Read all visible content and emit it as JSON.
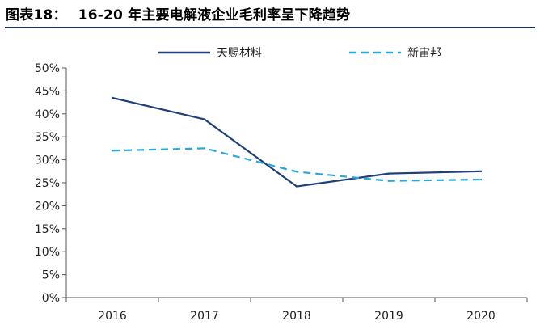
{
  "header": {
    "figure_label": "图表18：",
    "title": "16-20 年主要电解液企业毛利率呈下降趋势"
  },
  "chart_data": {
    "type": "line",
    "categories": [
      "2016",
      "2017",
      "2018",
      "2019",
      "2020"
    ],
    "yticks": [
      "0%",
      "5%",
      "10%",
      "15%",
      "20%",
      "25%",
      "30%",
      "35%",
      "40%",
      "45%",
      "50%"
    ],
    "ylim": [
      0,
      50
    ],
    "series": [
      {
        "name": "天赐材料",
        "values": [
          43.5,
          38.8,
          24.2,
          27.0,
          27.5
        ],
        "color": "#1f3f7a",
        "style": "solid"
      },
      {
        "name": "新宙邦",
        "values": [
          32.0,
          32.5,
          27.4,
          25.4,
          25.7
        ],
        "color": "#2aa8d8",
        "style": "dashed"
      }
    ],
    "legend_position": "top"
  }
}
